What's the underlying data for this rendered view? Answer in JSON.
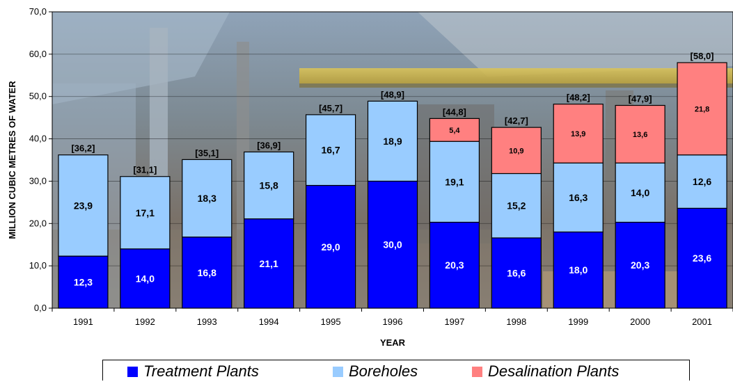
{
  "chart_data": {
    "type": "bar",
    "stacked": true,
    "xlabel": "YEAR",
    "ylabel": "MILLION CUBIC METRES OF WATER",
    "ylim": [
      0,
      70
    ],
    "yticks": [
      "0,0",
      "10,0",
      "20,0",
      "30,0",
      "40,0",
      "50,0",
      "60,0",
      "70,0"
    ],
    "grid": true,
    "legend_position": "bottom",
    "categories": [
      "1991",
      "1992",
      "1993",
      "1994",
      "1995",
      "1996",
      "1997",
      "1998",
      "1999",
      "2000",
      "2001"
    ],
    "series": [
      {
        "name": "Treatment Plants",
        "color": "#0000ff",
        "values": [
          12.3,
          14.0,
          16.8,
          21.1,
          29.0,
          30.0,
          20.3,
          16.6,
          18.0,
          20.3,
          23.6
        ],
        "labels": [
          "12,3",
          "14,0",
          "16,8",
          "21,1",
          "29,0",
          "30,0",
          "20,3",
          "16,6",
          "18,0",
          "20,3",
          "23,6"
        ]
      },
      {
        "name": "Boreholes",
        "color": "#99ccff",
        "values": [
          23.9,
          17.1,
          18.3,
          15.8,
          16.7,
          18.9,
          19.1,
          15.2,
          16.3,
          14.0,
          12.6
        ],
        "labels": [
          "23,9",
          "17,1",
          "18,3",
          "15,8",
          "16,7",
          "18,9",
          "19,1",
          "15,2",
          "16,3",
          "14,0",
          "12,6"
        ]
      },
      {
        "name": "Desalination Plants",
        "color": "#ff8080",
        "values": [
          0,
          0,
          0,
          0,
          0,
          0,
          5.4,
          10.9,
          13.9,
          13.6,
          21.8
        ],
        "labels": [
          "",
          "",
          "",
          "",
          "",
          "",
          "5,4",
          "10,9",
          "13,9",
          "13,6",
          "21,8"
        ]
      }
    ],
    "totals": [
      36.2,
      31.1,
      35.1,
      36.9,
      45.7,
      48.9,
      44.8,
      42.7,
      48.2,
      47.9,
      58.0
    ],
    "total_labels": [
      "[36,2]",
      "[31,1]",
      "[35,1]",
      "[36,9]",
      "[45,7]",
      "[48,9]",
      "[44,8]",
      "[42,7]",
      "[48,2]",
      "[47,9]",
      "[58,0]"
    ]
  }
}
